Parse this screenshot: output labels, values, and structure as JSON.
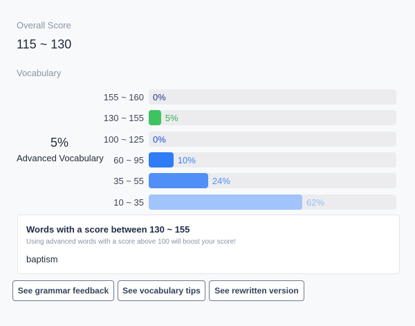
{
  "overall": {
    "label": "Overall Score",
    "value": "115 ~ 130"
  },
  "vocabulary": {
    "label": "Vocabulary",
    "percent": "5%",
    "caption": "Advanced Vocabulary",
    "chart": {
      "type": "bar",
      "categories": [
        "155 ~ 160",
        "130 ~ 155",
        "100 ~ 125",
        "60 ~ 95",
        "35 ~ 55",
        "10 ~ 35"
      ],
      "values": [
        0,
        5,
        0,
        10,
        24,
        62
      ],
      "value_labels": [
        "0%",
        "5%",
        "0%",
        "10%",
        "24%",
        "62%"
      ],
      "colors": [
        "#1e3a8a",
        "#3ec35f",
        "#1d4ed8",
        "#2f7cf6",
        "#4f8ff7",
        "#a0c4fb"
      ],
      "label_colors": [
        "#1e3a8a",
        "#2fb352",
        "#1d4ed8",
        "#3b82f6",
        "#4f8ff7",
        "#93bdfb"
      ],
      "xlim": [
        0,
        100
      ]
    }
  },
  "detail": {
    "title": "Words with a score between 130 ~ 155",
    "subtitle": "Using advanced words with a score above 100 will boost your score!",
    "words": [
      "baptism"
    ]
  },
  "buttons": [
    "See grammar feedback",
    "See vocabulary tips",
    "See rewritten version"
  ]
}
